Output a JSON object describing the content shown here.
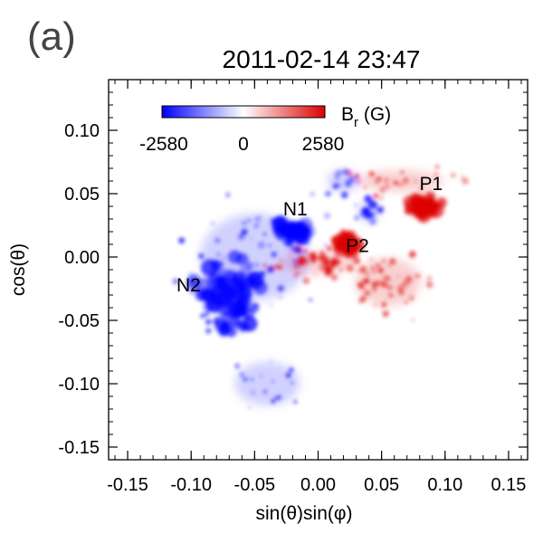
{
  "figure": {
    "panel_label": "(a)",
    "title": "2011-02-14 23:47"
  },
  "chart_data": {
    "type": "heatmap",
    "title": "2011-02-14 23:47",
    "xlabel": "sin(θ)sin(φ)",
    "ylabel": "cos(θ)",
    "xlim": [
      -0.165,
      0.165
    ],
    "ylim": [
      -0.16,
      0.14
    ],
    "x_ticks": [
      -0.15,
      -0.1,
      -0.05,
      0.0,
      0.05,
      0.1,
      0.15
    ],
    "x_tick_labels": [
      "-0.15",
      "-0.10",
      "-0.05",
      "0.00",
      "0.05",
      "0.10",
      "0.15"
    ],
    "y_ticks": [
      0.1,
      0.05,
      0.0,
      -0.05,
      -0.1,
      -0.15
    ],
    "y_tick_labels": [
      "0.10",
      "0.05",
      "0.00",
      "-0.05",
      "-0.10",
      "-0.15"
    ],
    "colorbar": {
      "label_main": "B",
      "label_sub": "r",
      "label_unit": " (G)",
      "min": -2580,
      "max": 2580,
      "tick_labels": [
        "-2580",
        "0",
        "2580"
      ],
      "color_min": "#0000ff",
      "color_mid": "#ffffff",
      "color_max": "#dd0000"
    },
    "regions": [
      {
        "label": "N1",
        "x": -0.018,
        "y": 0.033,
        "polarity": "negative"
      },
      {
        "label": "N2",
        "x": -0.102,
        "y": -0.027,
        "polarity": "negative"
      },
      {
        "label": "P1",
        "x": 0.089,
        "y": 0.053,
        "polarity": "positive"
      },
      {
        "label": "P2",
        "x": 0.031,
        "y": 0.004,
        "polarity": "positive"
      }
    ]
  }
}
